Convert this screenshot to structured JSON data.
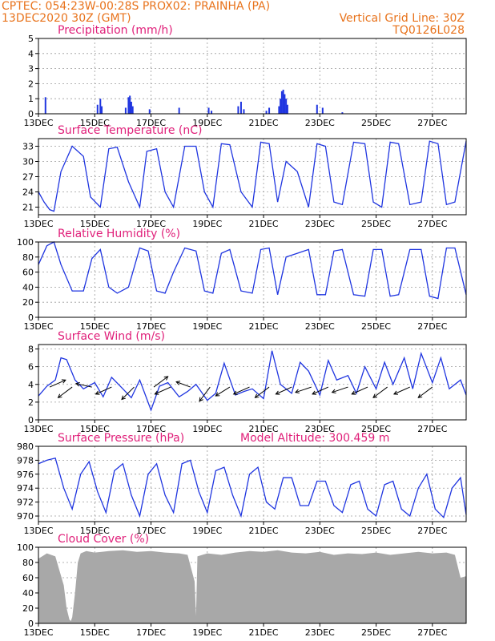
{
  "header": {
    "line1_left": "CPTEC:   054:23W-00:28S  PROX02: PRAINHA (PA)",
    "line2_left": "13DEC2020 30Z (GMT)",
    "line2_right": "Vertical Grid Line: 30Z",
    "line3_right": "TQ0126L028"
  },
  "x_axis": {
    "ticks": [
      "13DEC",
      "15DEC",
      "17DEC",
      "19DEC",
      "21DEC",
      "23DEC",
      "25DEC",
      "27DEC"
    ],
    "tick_days": [
      0,
      2,
      4,
      6,
      8,
      10,
      12,
      14
    ],
    "range_days": [
      0,
      15.2
    ]
  },
  "chart_data": [
    {
      "type": "bar",
      "title": "Precipitation (mm/h)",
      "ylim": [
        0,
        5
      ],
      "yticks": [
        0,
        1,
        2,
        3,
        4,
        5
      ],
      "events": [
        {
          "day": 0.25,
          "value": 1.1
        },
        {
          "day": 2.1,
          "value": 0.6
        },
        {
          "day": 2.2,
          "value": 1.0
        },
        {
          "day": 2.25,
          "value": 0.5
        },
        {
          "day": 3.1,
          "value": 0.4
        },
        {
          "day": 3.2,
          "value": 1.1
        },
        {
          "day": 3.25,
          "value": 1.2
        },
        {
          "day": 3.3,
          "value": 0.8
        },
        {
          "day": 3.35,
          "value": 0.5
        },
        {
          "day": 3.95,
          "value": 0.3
        },
        {
          "day": 5.0,
          "value": 0.4
        },
        {
          "day": 6.05,
          "value": 0.4
        },
        {
          "day": 6.15,
          "value": 0.2
        },
        {
          "day": 7.1,
          "value": 0.5
        },
        {
          "day": 7.2,
          "value": 0.8
        },
        {
          "day": 7.3,
          "value": 0.3
        },
        {
          "day": 8.1,
          "value": 0.2
        },
        {
          "day": 8.2,
          "value": 0.4
        },
        {
          "day": 8.55,
          "value": 0.5
        },
        {
          "day": 8.6,
          "value": 1.0
        },
        {
          "day": 8.65,
          "value": 1.5
        },
        {
          "day": 8.7,
          "value": 1.6
        },
        {
          "day": 8.75,
          "value": 1.3
        },
        {
          "day": 8.8,
          "value": 1.0
        },
        {
          "day": 8.85,
          "value": 0.6
        },
        {
          "day": 9.9,
          "value": 0.6
        },
        {
          "day": 10.1,
          "value": 0.4
        },
        {
          "day": 10.8,
          "value": 0.1
        }
      ]
    },
    {
      "type": "line",
      "title": "Surface Temperature (nC)",
      "ylim": [
        19.5,
        34.5
      ],
      "yticks": [
        21,
        24,
        27,
        30,
        33
      ],
      "x": [
        0,
        0.2,
        0.4,
        0.55,
        0.8,
        1.2,
        1.6,
        1.85,
        2.2,
        2.5,
        2.8,
        3.2,
        3.6,
        3.85,
        4.2,
        4.5,
        4.8,
        5.2,
        5.6,
        5.9,
        6.2,
        6.5,
        6.8,
        7.2,
        7.6,
        7.9,
        8.2,
        8.5,
        8.8,
        9.2,
        9.6,
        9.9,
        10.2,
        10.5,
        10.8,
        11.2,
        11.6,
        11.9,
        12.2,
        12.5,
        12.8,
        13.2,
        13.6,
        13.9,
        14.2,
        14.5,
        14.8,
        15.2
      ],
      "values": [
        24,
        22,
        20.5,
        20.2,
        28,
        33,
        31,
        23,
        21,
        32.5,
        32.8,
        26,
        21,
        32,
        32.5,
        24,
        21,
        33,
        33,
        24,
        21,
        33.5,
        33.3,
        24,
        21,
        33.8,
        33.5,
        22,
        30,
        28,
        21,
        33.5,
        33,
        22,
        21.5,
        33.8,
        33.5,
        22,
        21,
        33.8,
        33.5,
        21.5,
        22,
        34,
        33.5,
        21.5,
        22,
        34
      ]
    },
    {
      "type": "line",
      "title": "Relative Humidity (%)",
      "ylim": [
        0,
        100
      ],
      "yticks": [
        0,
        20,
        40,
        60,
        80,
        100
      ],
      "x": [
        0,
        0.3,
        0.55,
        0.8,
        1.2,
        1.6,
        1.9,
        2.2,
        2.5,
        2.8,
        3.2,
        3.6,
        3.9,
        4.2,
        4.5,
        4.8,
        5.2,
        5.6,
        5.9,
        6.2,
        6.5,
        6.8,
        7.2,
        7.6,
        7.9,
        8.2,
        8.5,
        8.8,
        9.2,
        9.6,
        9.9,
        10.2,
        10.5,
        10.8,
        11.2,
        11.6,
        11.9,
        12.2,
        12.5,
        12.8,
        13.2,
        13.6,
        13.9,
        14.2,
        14.5,
        14.8,
        15.2
      ],
      "values": [
        70,
        95,
        100,
        70,
        35,
        35,
        78,
        90,
        40,
        32,
        40,
        92,
        88,
        35,
        32,
        60,
        92,
        88,
        35,
        32,
        85,
        90,
        35,
        32,
        90,
        92,
        30,
        80,
        85,
        90,
        30,
        30,
        88,
        90,
        30,
        28,
        90,
        90,
        28,
        30,
        90,
        90,
        28,
        25,
        92,
        92,
        30
      ]
    },
    {
      "type": "line",
      "title": "Surface Wind (m/s)",
      "ylim": [
        0,
        8.5
      ],
      "yticks": [
        0,
        2,
        4,
        6,
        8
      ],
      "x": [
        0,
        0.3,
        0.6,
        0.8,
        1.0,
        1.3,
        1.6,
        2.0,
        2.3,
        2.6,
        3.0,
        3.3,
        3.6,
        4.0,
        4.3,
        4.6,
        5.0,
        5.3,
        5.6,
        6.0,
        6.3,
        6.6,
        7.0,
        7.3,
        7.6,
        8.0,
        8.3,
        8.6,
        9.0,
        9.3,
        9.6,
        10.0,
        10.3,
        10.6,
        11.0,
        11.3,
        11.6,
        12.0,
        12.3,
        12.6,
        13.0,
        13.3,
        13.6,
        14.0,
        14.3,
        14.6,
        15.0,
        15.2
      ],
      "values": [
        2.7,
        3.8,
        4.5,
        7.0,
        6.8,
        4.5,
        3.5,
        4.2,
        2.6,
        4.8,
        3.5,
        2.5,
        4.5,
        1.1,
        3.8,
        4.2,
        2.6,
        3.2,
        4.0,
        2.2,
        3.0,
        6.4,
        2.8,
        3.2,
        3.5,
        2.4,
        7.8,
        4.0,
        3.0,
        6.5,
        5.5,
        2.8,
        6.7,
        4.5,
        5.0,
        3.0,
        6.0,
        3.5,
        6.5,
        4.0,
        7.0,
        3.5,
        7.5,
        4.2,
        7.0,
        3.5,
        4.5,
        2.8
      ],
      "vectors": [
        {
          "day": 0.4,
          "dx": 0.9,
          "dy": 0.4
        },
        {
          "day": 1.2,
          "dx": -0.8,
          "dy": -0.6
        },
        {
          "day": 1.9,
          "dx": -0.9,
          "dy": 0.2
        },
        {
          "day": 2.6,
          "dx": -0.9,
          "dy": -0.4
        },
        {
          "day": 3.4,
          "dx": -0.7,
          "dy": -0.7
        },
        {
          "day": 4.1,
          "dx": 0.8,
          "dy": 0.6
        },
        {
          "day": 4.7,
          "dx": -0.9,
          "dy": -0.4
        },
        {
          "day": 5.4,
          "dx": -0.8,
          "dy": 0.3
        },
        {
          "day": 6.1,
          "dx": -0.6,
          "dy": -0.8
        },
        {
          "day": 6.8,
          "dx": -0.8,
          "dy": -0.5
        },
        {
          "day": 7.5,
          "dx": -0.9,
          "dy": -0.4
        },
        {
          "day": 8.2,
          "dx": -0.8,
          "dy": -0.6
        },
        {
          "day": 9.0,
          "dx": -0.9,
          "dy": -0.4
        },
        {
          "day": 9.7,
          "dx": -0.9,
          "dy": -0.3
        },
        {
          "day": 10.3,
          "dx": -0.9,
          "dy": -0.4
        },
        {
          "day": 11.0,
          "dx": -0.9,
          "dy": -0.3
        },
        {
          "day": 11.7,
          "dx": -0.9,
          "dy": -0.4
        },
        {
          "day": 12.4,
          "dx": -0.8,
          "dy": -0.6
        },
        {
          "day": 13.2,
          "dx": -0.9,
          "dy": -0.4
        },
        {
          "day": 14.0,
          "dx": -0.8,
          "dy": -0.6
        }
      ]
    },
    {
      "type": "line",
      "title": "Surface Pressure (hPa)",
      "subtitle": "Model Altitude: 300.459 m",
      "ylim": [
        969.2,
        980
      ],
      "yticks": [
        970,
        972,
        974,
        976,
        978,
        980
      ],
      "x": [
        0,
        0.3,
        0.6,
        0.9,
        1.2,
        1.5,
        1.8,
        2.1,
        2.4,
        2.7,
        3.0,
        3.3,
        3.6,
        3.9,
        4.2,
        4.5,
        4.8,
        5.1,
        5.4,
        5.7,
        6.0,
        6.3,
        6.6,
        6.9,
        7.2,
        7.5,
        7.8,
        8.1,
        8.4,
        8.7,
        9.0,
        9.3,
        9.6,
        9.9,
        10.2,
        10.5,
        10.8,
        11.1,
        11.4,
        11.7,
        12.0,
        12.3,
        12.6,
        12.9,
        13.2,
        13.5,
        13.8,
        14.1,
        14.4,
        14.7,
        15.0,
        15.2
      ],
      "values": [
        977.5,
        978.0,
        978.3,
        974.0,
        971.0,
        976.0,
        977.8,
        973.5,
        970.5,
        976.5,
        977.5,
        973.0,
        970.0,
        976.0,
        977.5,
        973.0,
        970.5,
        977.5,
        978.0,
        973.5,
        970.5,
        976.5,
        977.0,
        973.0,
        970.0,
        976.0,
        977.0,
        972.0,
        971.0,
        975.5,
        975.5,
        971.5,
        971.5,
        975.0,
        975.0,
        971.5,
        970.5,
        974.5,
        975.0,
        971.0,
        970.0,
        974.5,
        975.0,
        971.0,
        970.0,
        974.0,
        976.0,
        971.0,
        969.8,
        974.0,
        975.5,
        970.2
      ]
    },
    {
      "type": "area",
      "title": "Cloud Cover (%)",
      "ylim": [
        0,
        100
      ],
      "yticks": [
        0,
        20,
        40,
        60,
        80,
        100
      ],
      "x": [
        0,
        0.3,
        0.6,
        0.9,
        1.0,
        1.1,
        1.15,
        1.2,
        1.3,
        1.4,
        1.5,
        1.7,
        2.0,
        2.5,
        3.0,
        3.5,
        4.0,
        4.5,
        5.0,
        5.3,
        5.55,
        5.6,
        5.65,
        6.0,
        6.5,
        7.0,
        7.5,
        8.0,
        8.5,
        9.0,
        9.5,
        10.0,
        10.5,
        11.0,
        11.5,
        12.0,
        12.5,
        13.0,
        13.5,
        14.0,
        14.5,
        14.8,
        15.0,
        15.2
      ],
      "values": [
        85,
        92,
        88,
        50,
        20,
        5,
        3,
        8,
        40,
        80,
        92,
        95,
        93,
        95,
        96,
        94,
        95,
        93,
        92,
        90,
        55,
        10,
        88,
        92,
        90,
        93,
        95,
        94,
        96,
        93,
        92,
        94,
        90,
        92,
        91,
        93,
        90,
        92,
        94,
        92,
        93,
        90,
        60,
        62
      ]
    }
  ]
}
